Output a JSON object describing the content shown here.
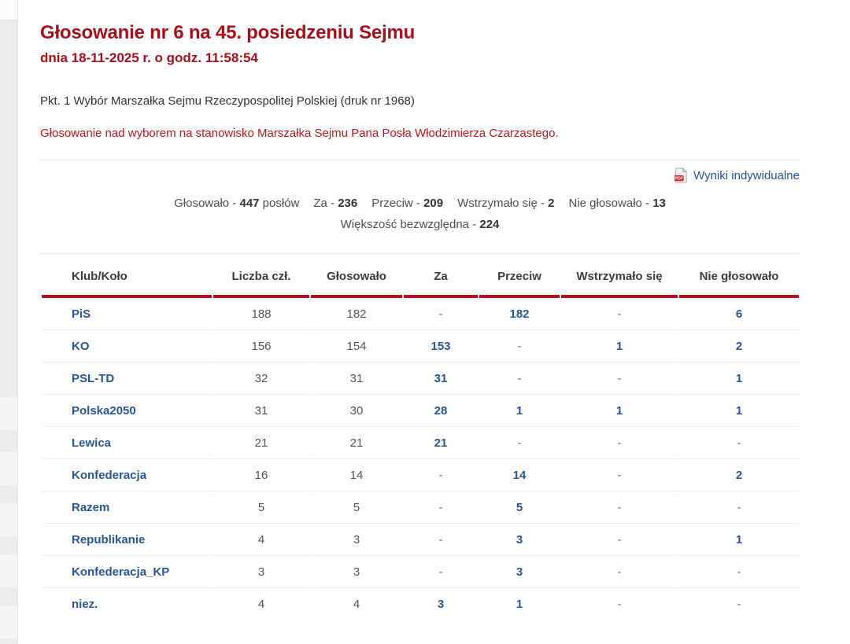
{
  "page": {
    "title": "Głosowanie nr 6 na 45. posiedzeniu Sejmu",
    "subtitle": "dnia 18-11-2025 r. o godz. 11:58:54",
    "agenda_item": "Pkt. 1 Wybór Marszałka Sejmu Rzeczypospolitej Polskiej (druk nr 1968)",
    "description": "Głosowanie nad wyborem na stanowisko Marszałka Sejmu Pana Posła Włodzimierza Czarzastego."
  },
  "links": {
    "individual_results": "Wyniki indywidualne",
    "pdf_badge": "PDF"
  },
  "summary": {
    "items": [
      {
        "label": "Głosowało -",
        "value": "447",
        "suffix": "posłów"
      },
      {
        "label": "Za -",
        "value": "236"
      },
      {
        "label": "Przeciw -",
        "value": "209"
      },
      {
        "label": "Wstrzymało się -",
        "value": "2"
      },
      {
        "label": "Nie głosowało -",
        "value": "13"
      }
    ],
    "majority_label": "Większość bezwzględna -",
    "majority_value": "224"
  },
  "table": {
    "headers": [
      "Klub/Koło",
      "Liczba czł.",
      "Głosowało",
      "Za",
      "Przeciw",
      "Wstrzymało się",
      "Nie głosowało"
    ],
    "rows": [
      [
        "PiS",
        "188",
        "182",
        "-",
        "182",
        "-",
        "6"
      ],
      [
        "KO",
        "156",
        "154",
        "153",
        "-",
        "1",
        "2"
      ],
      [
        "PSL-TD",
        "32",
        "31",
        "31",
        "-",
        "-",
        "1"
      ],
      [
        "Polska2050",
        "31",
        "30",
        "28",
        "1",
        "1",
        "1"
      ],
      [
        "Lewica",
        "21",
        "21",
        "21",
        "-",
        "-",
        "-"
      ],
      [
        "Konfederacja",
        "16",
        "14",
        "-",
        "14",
        "-",
        "2"
      ],
      [
        "Razem",
        "5",
        "5",
        "-",
        "5",
        "-",
        "-"
      ],
      [
        "Republikanie",
        "4",
        "3",
        "-",
        "3",
        "-",
        "1"
      ],
      [
        "Konfederacja_KP",
        "3",
        "3",
        "-",
        "3",
        "-",
        "-"
      ],
      [
        "niez.",
        "4",
        "4",
        "3",
        "1",
        "-",
        "-"
      ]
    ]
  },
  "colors": {
    "title_red": "#a80e1c",
    "body_red": "#c4161c",
    "table_border_red": "#b30f1d",
    "link_blue": "#2a5699",
    "pdf_badge_red": "#d41f2c"
  }
}
